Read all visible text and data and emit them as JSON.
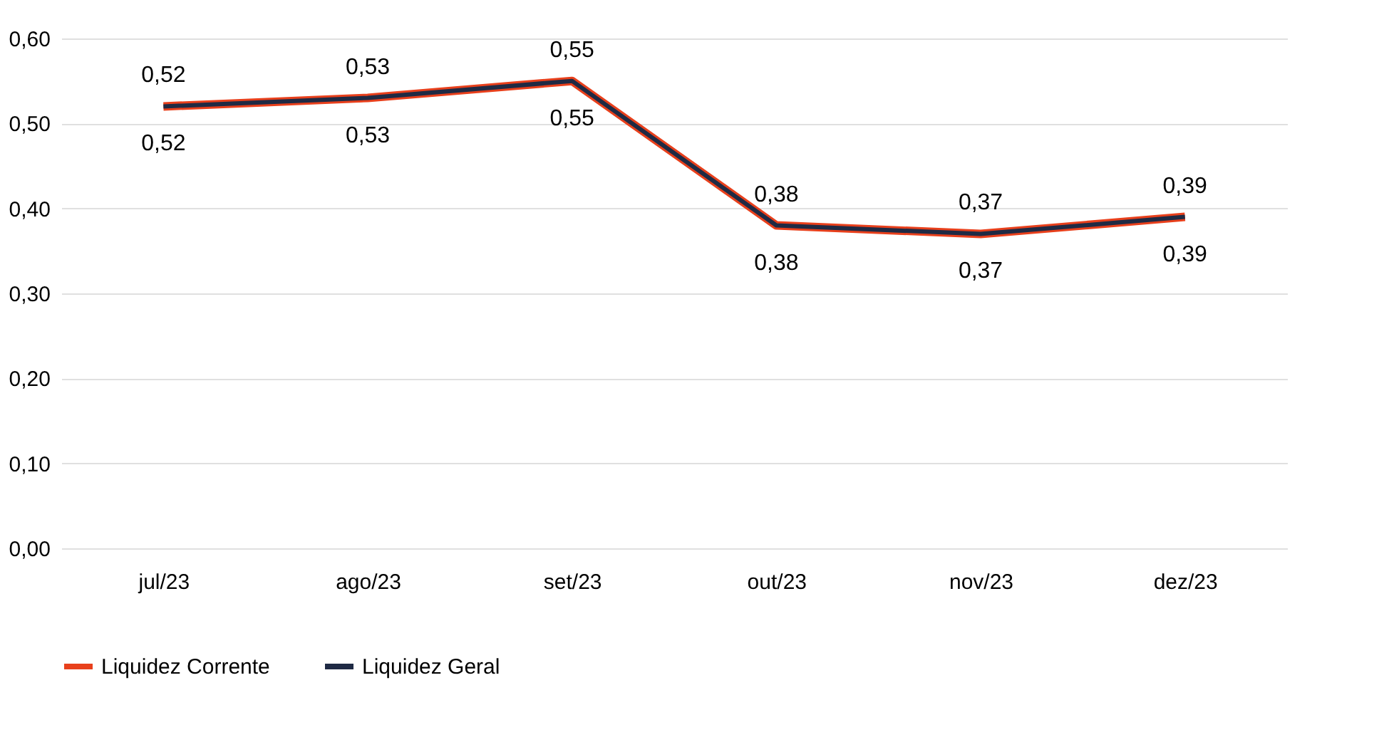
{
  "chart_data": {
    "type": "line",
    "categories": [
      "jul/23",
      "ago/23",
      "set/23",
      "out/23",
      "nov/23",
      "dez/23"
    ],
    "series": [
      {
        "name": "Liquidez Corrente",
        "color": "#e8401c",
        "values": [
          0.52,
          0.53,
          0.55,
          0.38,
          0.37,
          0.39
        ],
        "value_labels": [
          "0,52",
          "0,53",
          "0,55",
          "0,38",
          "0,37",
          "0,39"
        ]
      },
      {
        "name": "Liquidez Geral",
        "color": "#1f2a44",
        "values": [
          0.52,
          0.53,
          0.55,
          0.38,
          0.37,
          0.39
        ],
        "value_labels": [
          "0,52",
          "0,53",
          "0,55",
          "0,38",
          "0,37",
          "0,39"
        ]
      }
    ],
    "ylim": [
      0,
      0.6
    ],
    "yticks": [
      {
        "value": 0,
        "label": "0,00"
      },
      {
        "value": 0.1,
        "label": "0,10"
      },
      {
        "value": 0.2,
        "label": "0,20"
      },
      {
        "value": 0.3,
        "label": "0,30"
      },
      {
        "value": 0.4,
        "label": "0,40"
      },
      {
        "value": 0.5,
        "label": "0,50"
      },
      {
        "value": 0.6,
        "label": "0,60"
      }
    ],
    "grid": "y",
    "legend": "bottom",
    "marker": "none",
    "line_style": "solid"
  }
}
